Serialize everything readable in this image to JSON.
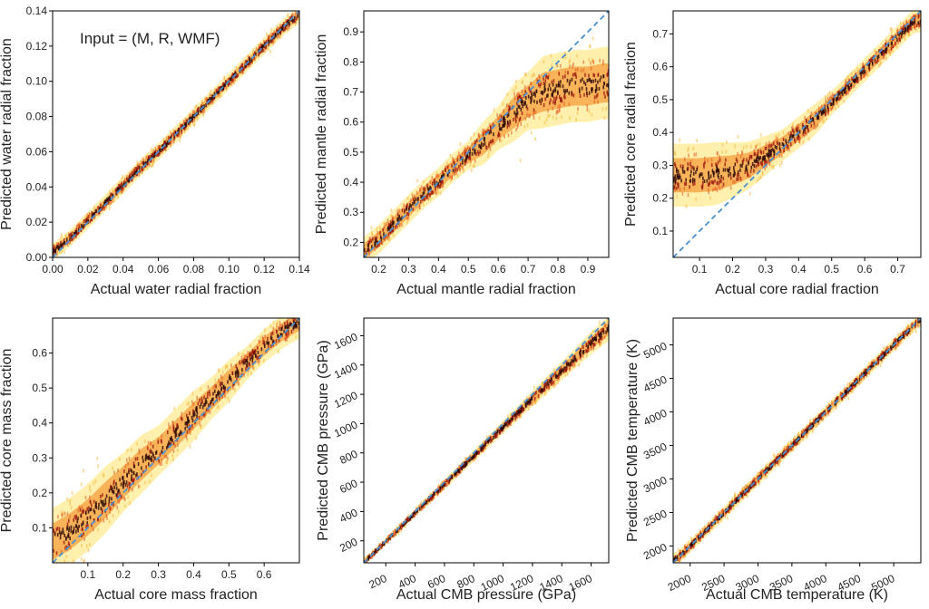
{
  "figure": {
    "annotation": "Input = (M, R, WMF)"
  },
  "chart_data": [
    {
      "type": "scatter",
      "xlabel": "Actual water radial fraction",
      "ylabel": "Predicted water radial fraction",
      "xlim": [
        0.0,
        0.14
      ],
      "ylim": [
        0.0,
        0.14
      ],
      "xticks": [
        0.0,
        0.02,
        0.04,
        0.06,
        0.08,
        0.1,
        0.12,
        0.14
      ],
      "yticks": [
        0.0,
        0.02,
        0.04,
        0.06,
        0.08,
        0.1,
        0.12,
        0.14
      ],
      "xtick_labels": [
        "0.00",
        "0.02",
        "0.04",
        "0.06",
        "0.08",
        "0.10",
        "0.12",
        "0.14"
      ],
      "ytick_labels": [
        "0.00",
        "0.02",
        "0.04",
        "0.06",
        "0.08",
        "0.10",
        "0.12",
        "0.14"
      ],
      "identity_line": true,
      "points": [
        [
          0.0,
          0.003
        ],
        [
          0.01,
          0.011
        ],
        [
          0.02,
          0.021
        ],
        [
          0.03,
          0.031
        ],
        [
          0.04,
          0.041
        ],
        [
          0.05,
          0.051
        ],
        [
          0.06,
          0.06
        ],
        [
          0.07,
          0.07
        ],
        [
          0.08,
          0.08
        ],
        [
          0.09,
          0.09
        ],
        [
          0.1,
          0.1
        ],
        [
          0.11,
          0.11
        ],
        [
          0.12,
          0.12
        ],
        [
          0.13,
          0.13
        ],
        [
          0.14,
          0.138
        ]
      ],
      "spread": [
        0.002,
        0.002,
        0.002,
        0.002,
        0.002,
        0.002,
        0.002,
        0.002,
        0.002,
        0.002,
        0.002,
        0.002,
        0.002,
        0.002,
        0.002
      ]
    },
    {
      "type": "scatter",
      "xlabel": "Actual mantle radial fraction",
      "ylabel": "Predicted mantle radial fraction",
      "xlim": [
        0.15,
        0.97
      ],
      "ylim": [
        0.15,
        0.97
      ],
      "xticks": [
        0.2,
        0.3,
        0.4,
        0.5,
        0.6,
        0.7,
        0.8,
        0.9
      ],
      "yticks": [
        0.2,
        0.3,
        0.4,
        0.5,
        0.6,
        0.7,
        0.8,
        0.9
      ],
      "xtick_labels": [
        "0.2",
        "0.3",
        "0.4",
        "0.5",
        "0.6",
        "0.7",
        "0.8",
        "0.9"
      ],
      "ytick_labels": [
        "0.2",
        "0.3",
        "0.4",
        "0.5",
        "0.6",
        "0.7",
        "0.8",
        "0.9"
      ],
      "identity_line": true,
      "points": [
        [
          0.15,
          0.17
        ],
        [
          0.2,
          0.21
        ],
        [
          0.25,
          0.26
        ],
        [
          0.3,
          0.31
        ],
        [
          0.35,
          0.36
        ],
        [
          0.4,
          0.4
        ],
        [
          0.45,
          0.45
        ],
        [
          0.5,
          0.49
        ],
        [
          0.55,
          0.53
        ],
        [
          0.6,
          0.58
        ],
        [
          0.65,
          0.63
        ],
        [
          0.7,
          0.67
        ],
        [
          0.75,
          0.7
        ],
        [
          0.8,
          0.71
        ],
        [
          0.85,
          0.72
        ],
        [
          0.9,
          0.72
        ],
        [
          0.95,
          0.73
        ]
      ],
      "spread": [
        0.02,
        0.02,
        0.02,
        0.02,
        0.02,
        0.02,
        0.02,
        0.02,
        0.03,
        0.03,
        0.04,
        0.04,
        0.05,
        0.05,
        0.05,
        0.05,
        0.05
      ]
    },
    {
      "type": "scatter",
      "xlabel": "Actual core radial fraction",
      "ylabel": "Predicted core radial fraction",
      "xlim": [
        0.02,
        0.77
      ],
      "ylim": [
        0.02,
        0.77
      ],
      "xticks": [
        0.1,
        0.2,
        0.3,
        0.4,
        0.5,
        0.6,
        0.7
      ],
      "yticks": [
        0.1,
        0.2,
        0.3,
        0.4,
        0.5,
        0.6,
        0.7
      ],
      "xtick_labels": [
        "0.1",
        "0.2",
        "0.3",
        "0.4",
        "0.5",
        "0.6",
        "0.7"
      ],
      "ytick_labels": [
        "0.1",
        "0.2",
        "0.3",
        "0.4",
        "0.5",
        "0.6",
        "0.7"
      ],
      "identity_line": true,
      "points": [
        [
          0.02,
          0.27
        ],
        [
          0.05,
          0.27
        ],
        [
          0.1,
          0.27
        ],
        [
          0.15,
          0.275
        ],
        [
          0.2,
          0.285
        ],
        [
          0.25,
          0.3
        ],
        [
          0.3,
          0.33
        ],
        [
          0.35,
          0.36
        ],
        [
          0.4,
          0.4
        ],
        [
          0.45,
          0.44
        ],
        [
          0.5,
          0.49
        ],
        [
          0.55,
          0.54
        ],
        [
          0.6,
          0.59
        ],
        [
          0.65,
          0.64
        ],
        [
          0.7,
          0.69
        ],
        [
          0.75,
          0.74
        ]
      ],
      "spread": [
        0.04,
        0.04,
        0.04,
        0.04,
        0.035,
        0.03,
        0.025,
        0.02,
        0.02,
        0.02,
        0.015,
        0.015,
        0.015,
        0.015,
        0.015,
        0.015
      ]
    },
    {
      "type": "scatter",
      "xlabel": "Actual core mass fraction",
      "ylabel": "Predicted core mass fraction",
      "xlim": [
        0.0,
        0.7
      ],
      "ylim": [
        0.0,
        0.7
      ],
      "xticks": [
        0.1,
        0.2,
        0.3,
        0.4,
        0.5,
        0.6
      ],
      "yticks": [
        0.1,
        0.2,
        0.3,
        0.4,
        0.5,
        0.6
      ],
      "xtick_labels": [
        "0.1",
        "0.2",
        "0.3",
        "0.4",
        "0.5",
        "0.6"
      ],
      "ytick_labels": [
        "0.1",
        "0.2",
        "0.3",
        "0.4",
        "0.5",
        "0.6"
      ],
      "identity_line": true,
      "points": [
        [
          0.0,
          0.06
        ],
        [
          0.05,
          0.09
        ],
        [
          0.1,
          0.13
        ],
        [
          0.15,
          0.18
        ],
        [
          0.2,
          0.23
        ],
        [
          0.25,
          0.28
        ],
        [
          0.3,
          0.32
        ],
        [
          0.35,
          0.37
        ],
        [
          0.4,
          0.42
        ],
        [
          0.45,
          0.47
        ],
        [
          0.5,
          0.52
        ],
        [
          0.55,
          0.57
        ],
        [
          0.6,
          0.62
        ],
        [
          0.65,
          0.66
        ],
        [
          0.7,
          0.69
        ]
      ],
      "spread": [
        0.04,
        0.04,
        0.04,
        0.04,
        0.035,
        0.035,
        0.03,
        0.03,
        0.03,
        0.025,
        0.025,
        0.02,
        0.02,
        0.02,
        0.02
      ]
    },
    {
      "type": "scatter",
      "xlabel": "Actual CMB pressure (GPa)",
      "ylabel": "Predicted CMB pressure (GPa)",
      "xlim": [
        50,
        1720
      ],
      "ylim": [
        50,
        1720
      ],
      "xticks": [
        200,
        400,
        600,
        800,
        1000,
        1200,
        1400,
        1600
      ],
      "yticks": [
        200,
        400,
        600,
        800,
        1000,
        1200,
        1400,
        1600
      ],
      "xtick_labels": [
        "200",
        "400",
        "600",
        "800",
        "1000",
        "1200",
        "1400",
        "1600"
      ],
      "ytick_labels": [
        "200",
        "400",
        "600",
        "800",
        "1000",
        "1200",
        "1400",
        "1600"
      ],
      "identity_line": true,
      "points": [
        [
          60,
          60
        ],
        [
          200,
          195
        ],
        [
          400,
          390
        ],
        [
          600,
          585
        ],
        [
          800,
          780
        ],
        [
          1000,
          975
        ],
        [
          1200,
          1170
        ],
        [
          1400,
          1360
        ],
        [
          1600,
          1550
        ],
        [
          1720,
          1650
        ]
      ],
      "spread": [
        10,
        10,
        12,
        14,
        16,
        18,
        22,
        26,
        32,
        35
      ]
    },
    {
      "type": "scatter",
      "xlabel": "Actual CMB temperature (K)",
      "ylabel": "Predicted CMB temperature (K)",
      "xlim": [
        1750,
        5400
      ],
      "ylim": [
        1750,
        5400
      ],
      "xticks": [
        2000,
        2500,
        3000,
        3500,
        4000,
        4500,
        5000
      ],
      "yticks": [
        2000,
        2500,
        3000,
        3500,
        4000,
        4500,
        5000
      ],
      "xtick_labels": [
        "2000",
        "2500",
        "3000",
        "3500",
        "4000",
        "4500",
        "5000"
      ],
      "ytick_labels": [
        "2000",
        "2500",
        "3000",
        "3500",
        "4000",
        "4500",
        "5000"
      ],
      "identity_line": true,
      "points": [
        [
          1800,
          1810
        ],
        [
          2000,
          2000
        ],
        [
          2500,
          2495
        ],
        [
          3000,
          3000
        ],
        [
          3500,
          3500
        ],
        [
          4000,
          4000
        ],
        [
          4500,
          4500
        ],
        [
          5000,
          5000
        ],
        [
          5400,
          5390
        ]
      ],
      "spread": [
        40,
        40,
        40,
        40,
        40,
        40,
        40,
        40,
        40
      ]
    }
  ]
}
